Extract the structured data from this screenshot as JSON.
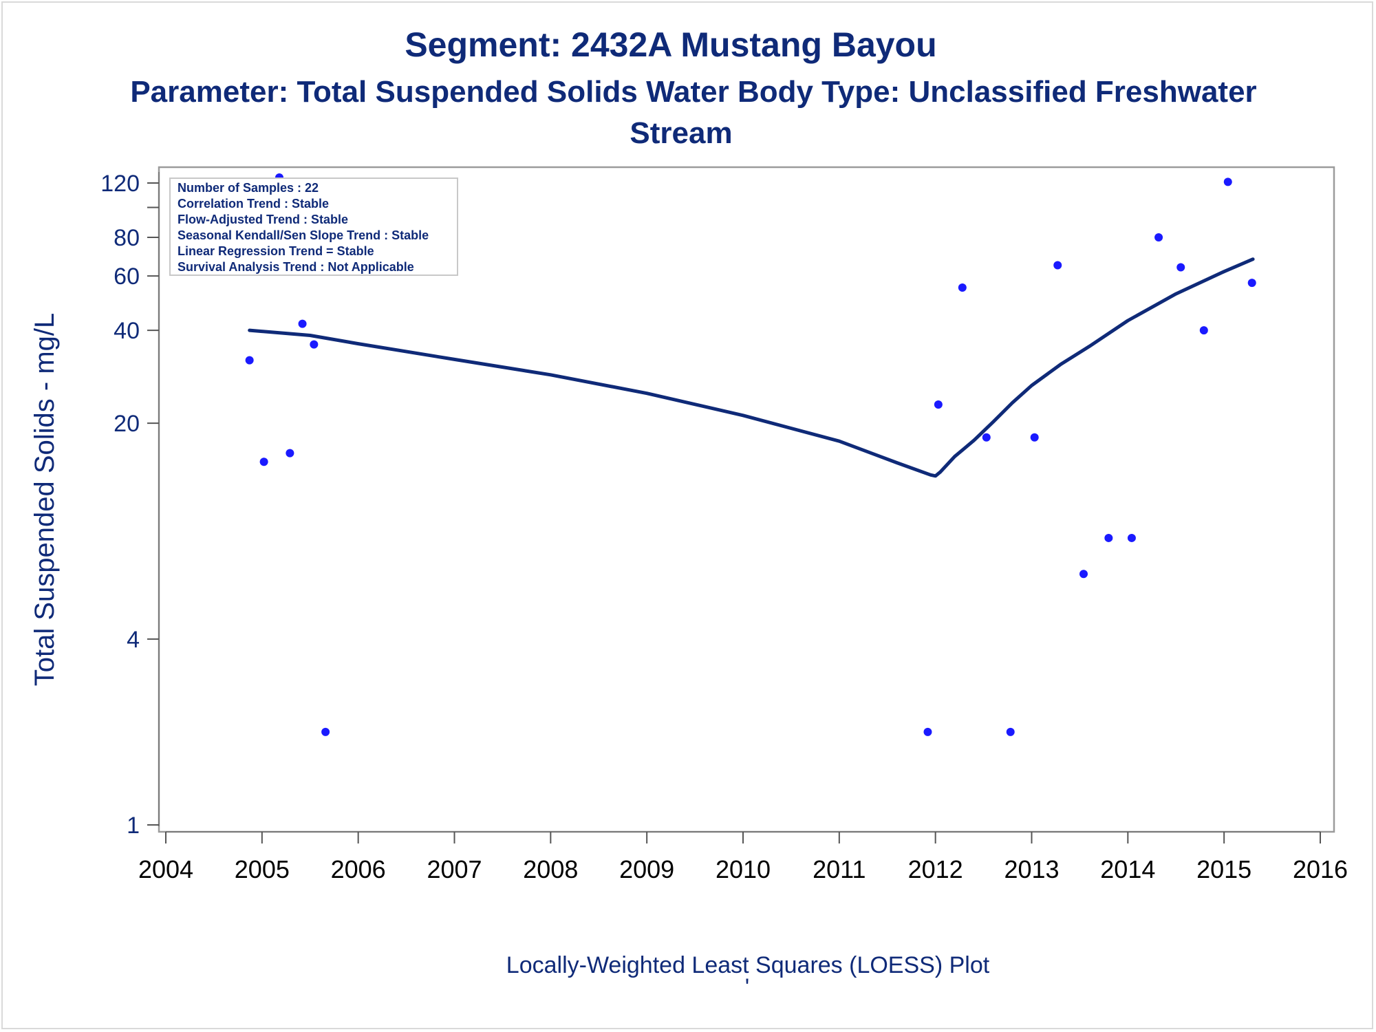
{
  "chart_data": {
    "type": "scatter",
    "title": "Segment: 2432A  Mustang Bayou",
    "subtitle_line1": "Parameter: Total Suspended Solids   Water Body Type: Unclassified Freshwater",
    "subtitle_line2": "Stream",
    "ylabel": "Total Suspended Solids - mg/L",
    "xlabel": "",
    "footnote": "Locally-Weighted Least Squares (LOESS) Plot",
    "footnote_mark": "'",
    "y_scale": "log",
    "ylim": [
      1,
      130
    ],
    "xlim": [
      2004,
      2016
    ],
    "x_ticks": [
      "2004",
      "2005",
      "2006",
      "2007",
      "2008",
      "2009",
      "2010",
      "2011",
      "2012",
      "2013",
      "2014",
      "2015",
      "2016"
    ],
    "y_ticks": [
      "1",
      "4",
      "20",
      "40",
      "60",
      "80",
      "120"
    ],
    "y_minor_ticks": [
      100
    ],
    "grid": false,
    "stats_box": {
      "position": "top-left",
      "lines": [
        "Number of Samples : 22",
        "Correlation Trend : Stable",
        "Flow-Adjusted Trend : Stable",
        "Seasonal Kendall/Sen Slope Trend : Stable",
        "Linear Regression Trend = Stable",
        "Survival Analysis Trend : Not Applicable"
      ]
    },
    "series": [
      {
        "kind": "points",
        "color": "#1a1aff",
        "points": [
          {
            "x": 2004.87,
            "y": 32
          },
          {
            "x": 2005.02,
            "y": 15
          },
          {
            "x": 2005.18,
            "y": 125
          },
          {
            "x": 2005.29,
            "y": 16
          },
          {
            "x": 2005.42,
            "y": 42
          },
          {
            "x": 2005.54,
            "y": 36
          },
          {
            "x": 2005.66,
            "y": 2
          },
          {
            "x": 2011.92,
            "y": 2
          },
          {
            "x": 2012.03,
            "y": 23
          },
          {
            "x": 2012.28,
            "y": 55
          },
          {
            "x": 2012.53,
            "y": 18
          },
          {
            "x": 2012.78,
            "y": 2
          },
          {
            "x": 2013.03,
            "y": 18
          },
          {
            "x": 2013.27,
            "y": 65
          },
          {
            "x": 2013.54,
            "y": 6.5
          },
          {
            "x": 2013.8,
            "y": 8.5
          },
          {
            "x": 2014.04,
            "y": 8.5
          },
          {
            "x": 2014.32,
            "y": 80
          },
          {
            "x": 2014.55,
            "y": 64
          },
          {
            "x": 2014.79,
            "y": 40
          },
          {
            "x": 2015.04,
            "y": 121
          },
          {
            "x": 2015.29,
            "y": 57
          }
        ]
      },
      {
        "kind": "loess",
        "color": "#0f2a78",
        "points": [
          {
            "x": 2004.87,
            "y": 40
          },
          {
            "x": 2005.5,
            "y": 38.5
          },
          {
            "x": 2006.0,
            "y": 36.2
          },
          {
            "x": 2007.0,
            "y": 32.2
          },
          {
            "x": 2008.0,
            "y": 28.7
          },
          {
            "x": 2009.0,
            "y": 25.0
          },
          {
            "x": 2010.0,
            "y": 21.2
          },
          {
            "x": 2011.0,
            "y": 17.5
          },
          {
            "x": 2011.6,
            "y": 14.9
          },
          {
            "x": 2011.95,
            "y": 13.6
          },
          {
            "x": 2012.0,
            "y": 13.5
          },
          {
            "x": 2012.05,
            "y": 13.9
          },
          {
            "x": 2012.2,
            "y": 15.6
          },
          {
            "x": 2012.4,
            "y": 17.6
          },
          {
            "x": 2012.6,
            "y": 20.2
          },
          {
            "x": 2012.8,
            "y": 23.3
          },
          {
            "x": 2013.0,
            "y": 26.5
          },
          {
            "x": 2013.3,
            "y": 31.0
          },
          {
            "x": 2013.6,
            "y": 35.5
          },
          {
            "x": 2014.0,
            "y": 43.0
          },
          {
            "x": 2014.5,
            "y": 52.5
          },
          {
            "x": 2015.0,
            "y": 62.0
          },
          {
            "x": 2015.3,
            "y": 68.0
          }
        ]
      }
    ]
  }
}
